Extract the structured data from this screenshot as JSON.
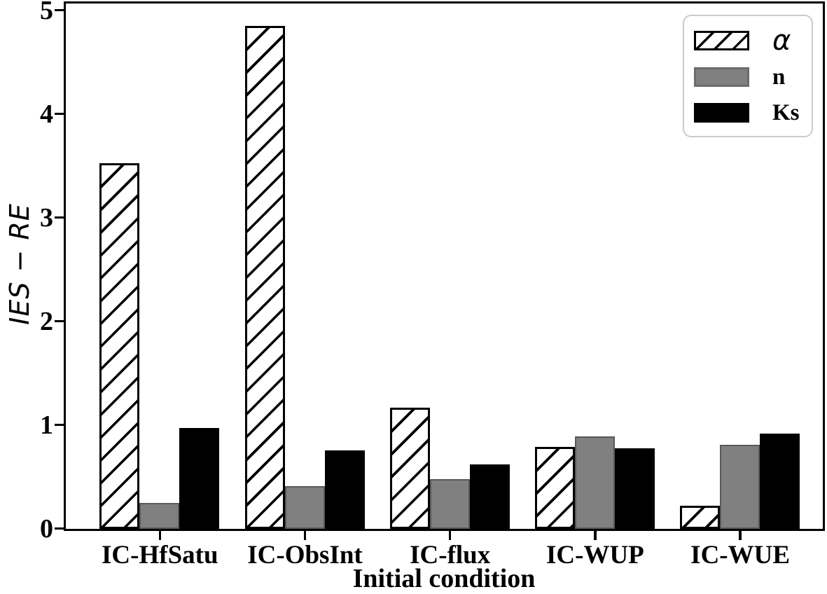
{
  "chart_data": {
    "type": "bar",
    "title": "",
    "xlabel": "Initial condition",
    "ylabel": "IES − RE",
    "categories": [
      "IC-HfSatu",
      "IC-ObsInt",
      "IC-flux",
      "IC-WUP",
      "IC-WUE"
    ],
    "series": [
      {
        "name": "α",
        "style": "hatch",
        "values": [
          3.53,
          4.85,
          1.17,
          0.79,
          0.22
        ]
      },
      {
        "name": "n",
        "style": "gray",
        "values": [
          0.25,
          0.41,
          0.48,
          0.89,
          0.81
        ]
      },
      {
        "name": "Ks",
        "style": "black",
        "values": [
          0.97,
          0.76,
          0.62,
          0.78,
          0.92
        ]
      }
    ],
    "ylim": [
      0,
      5
    ],
    "yticks": [
      0,
      1,
      2,
      3,
      4,
      5
    ],
    "grid": false,
    "legend_position": "upper right",
    "colors": {
      "axis": "#000000",
      "bar_edge": "#000000",
      "hatch": "#000000",
      "bar_gray": "#808080",
      "bar_gray_edge": "#595959",
      "bar_black": "#000000",
      "legend_border": "#cbcbcb"
    }
  }
}
